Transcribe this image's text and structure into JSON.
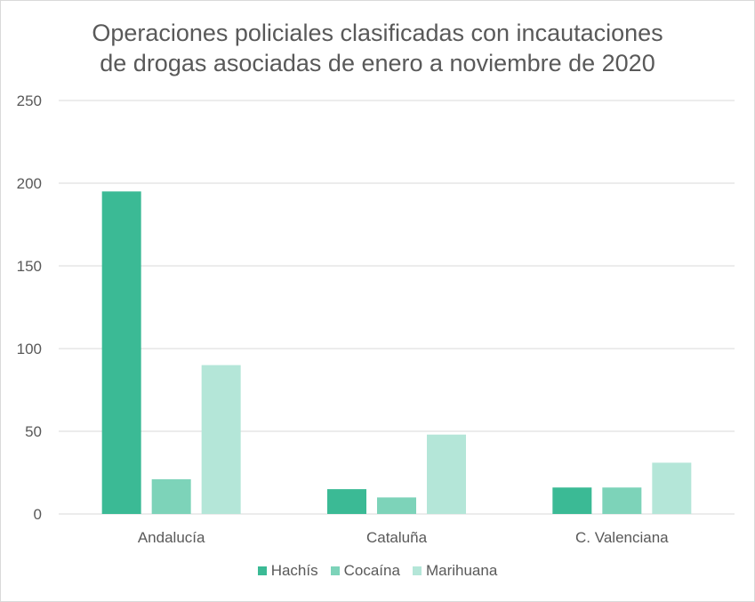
{
  "chart_data": {
    "type": "bar",
    "title_lines": [
      "Operaciones policiales clasificadas con incautaciones",
      "de drogas asociadas de enero a noviembre de 2020"
    ],
    "categories": [
      "Andalucía",
      "Cataluña",
      "C. Valenciana"
    ],
    "series": [
      {
        "name": "Hachís",
        "values": [
          195,
          15,
          16
        ],
        "color": "#3bba95"
      },
      {
        "name": "Cocaína",
        "values": [
          21,
          10,
          16
        ],
        "color": "#7dd3b9"
      },
      {
        "name": "Marihuana",
        "values": [
          90,
          48,
          31
        ],
        "color": "#b4e6d8"
      }
    ],
    "ylim": [
      0,
      250
    ],
    "yticks": [
      0,
      50,
      100,
      150,
      200,
      250
    ],
    "grid": true,
    "legend_position": "bottom"
  }
}
